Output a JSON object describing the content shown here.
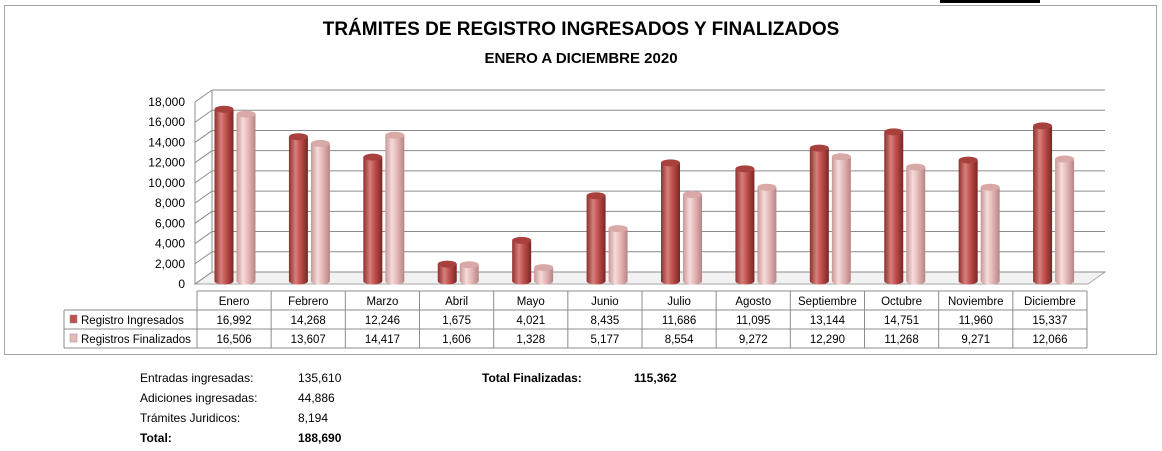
{
  "chart_data": {
    "type": "bar",
    "title": "TRÁMITES DE REGISTRO INGRESADOS Y FINALIZADOS",
    "subtitle": "ENERO A DICIEMBRE 2020",
    "categories": [
      "Enero",
      "Febrero",
      "Marzo",
      "Abril",
      "Mayo",
      "Junio",
      "Julio",
      "Agosto",
      "Septiembre",
      "Octubre",
      "Noviembre",
      "Diciembre"
    ],
    "series": [
      {
        "name": "Registro Ingresados",
        "color": "#c0504d",
        "values": [
          16992,
          14268,
          12246,
          1675,
          4021,
          8435,
          11686,
          11095,
          13144,
          14751,
          11960,
          15337
        ],
        "labels": [
          "16,992",
          "14,268",
          "12,246",
          "1,675",
          "4,021",
          "8,435",
          "11,686",
          "11,095",
          "13,144",
          "14,751",
          "11,960",
          "15,337"
        ]
      },
      {
        "name": "Registros Finalizados",
        "color": "#e6b9b8",
        "values": [
          16506,
          13607,
          14417,
          1606,
          1328,
          5177,
          8554,
          9272,
          12290,
          11268,
          9271,
          12066
        ],
        "labels": [
          "16,506",
          "13,607",
          "14,417",
          "1,606",
          "1,328",
          "5,177",
          "8,554",
          "9,272",
          "12,290",
          "11,268",
          "9,271",
          "12,066"
        ]
      }
    ],
    "ylim": [
      0,
      18000
    ],
    "yticks": [
      "0",
      "2,000",
      "4,000",
      "6,000",
      "8,000",
      "10,000",
      "12,000",
      "14,000",
      "16,000",
      "18,000"
    ],
    "ytick_values": [
      0,
      2000,
      4000,
      6000,
      8000,
      10000,
      12000,
      14000,
      16000,
      18000
    ],
    "grid": true,
    "legend": "data-table"
  },
  "summary": {
    "left": [
      {
        "label": "Entradas ingresadas:",
        "value": "135,610"
      },
      {
        "label": "Adiciones ingresadas:",
        "value": "44,886"
      },
      {
        "label": "Trámites Juridicos:",
        "value": "8,194"
      },
      {
        "label": "Total:",
        "value": "188,690"
      }
    ],
    "right": {
      "label": "Total Finalizadas:",
      "value": "115,362"
    }
  }
}
